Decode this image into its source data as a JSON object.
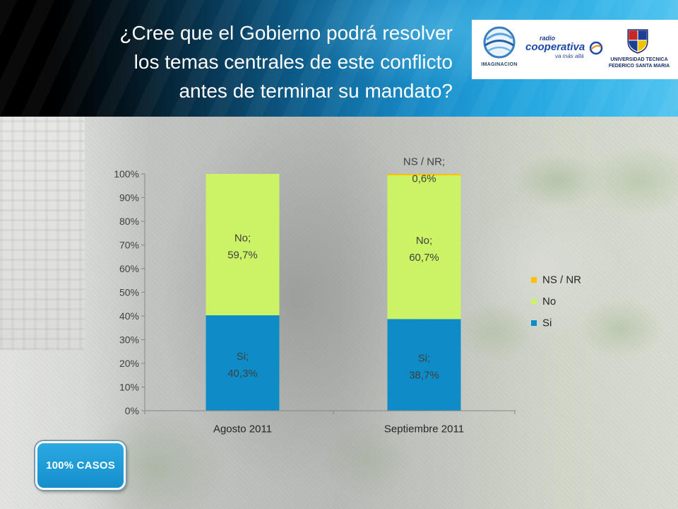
{
  "header": {
    "title_lines": [
      "¿Cree que el Gobierno podrá resolver",
      "los temas centrales de este conflicto",
      "antes de terminar su mandato?"
    ]
  },
  "logos": {
    "imaginacion": {
      "name": "IMAGINACION"
    },
    "cooperativa": {
      "prefix": "radio",
      "name": "cooperativa",
      "tagline": "va más allá"
    },
    "utfsm": {
      "line1": "UNIVERSIDAD TECNICA",
      "line2": "FEDERICO SANTA MARIA"
    }
  },
  "chart_data": {
    "type": "bar",
    "stacked": true,
    "categories": [
      "Agosto 2011",
      "Septiembre 2011"
    ],
    "series": [
      {
        "name": "Si",
        "color": "#0e8cc8",
        "values": [
          40.3,
          38.7
        ],
        "labels": [
          [
            "Si;",
            "40,3%"
          ],
          [
            "Si;",
            "38,7%"
          ]
        ]
      },
      {
        "name": "No",
        "color": "#ccf266",
        "values": [
          59.7,
          60.7
        ],
        "labels": [
          [
            "No;",
            "59,7%"
          ],
          [
            "No;",
            "60,7%"
          ]
        ]
      },
      {
        "name": "NS / NR",
        "color": "#ffc000",
        "values": [
          null,
          0.6
        ],
        "labels": [
          null,
          [
            "NS / NR;",
            "0,6%"
          ]
        ]
      }
    ],
    "ylim": [
      0,
      100
    ],
    "yticks": [
      {
        "value": 0,
        "label": "0%"
      },
      {
        "value": 10,
        "label": "10%"
      },
      {
        "value": 20,
        "label": "20%"
      },
      {
        "value": 30,
        "label": "30%"
      },
      {
        "value": 40,
        "label": "40%"
      },
      {
        "value": 50,
        "label": "50%"
      },
      {
        "value": 60,
        "label": "60%"
      },
      {
        "value": 70,
        "label": "70%"
      },
      {
        "value": 80,
        "label": "80%"
      },
      {
        "value": 90,
        "label": "90%"
      },
      {
        "value": 100,
        "label": "100%"
      }
    ],
    "grid": false,
    "legend": {
      "position": "right"
    }
  },
  "badge": {
    "label": "100% CASOS"
  }
}
